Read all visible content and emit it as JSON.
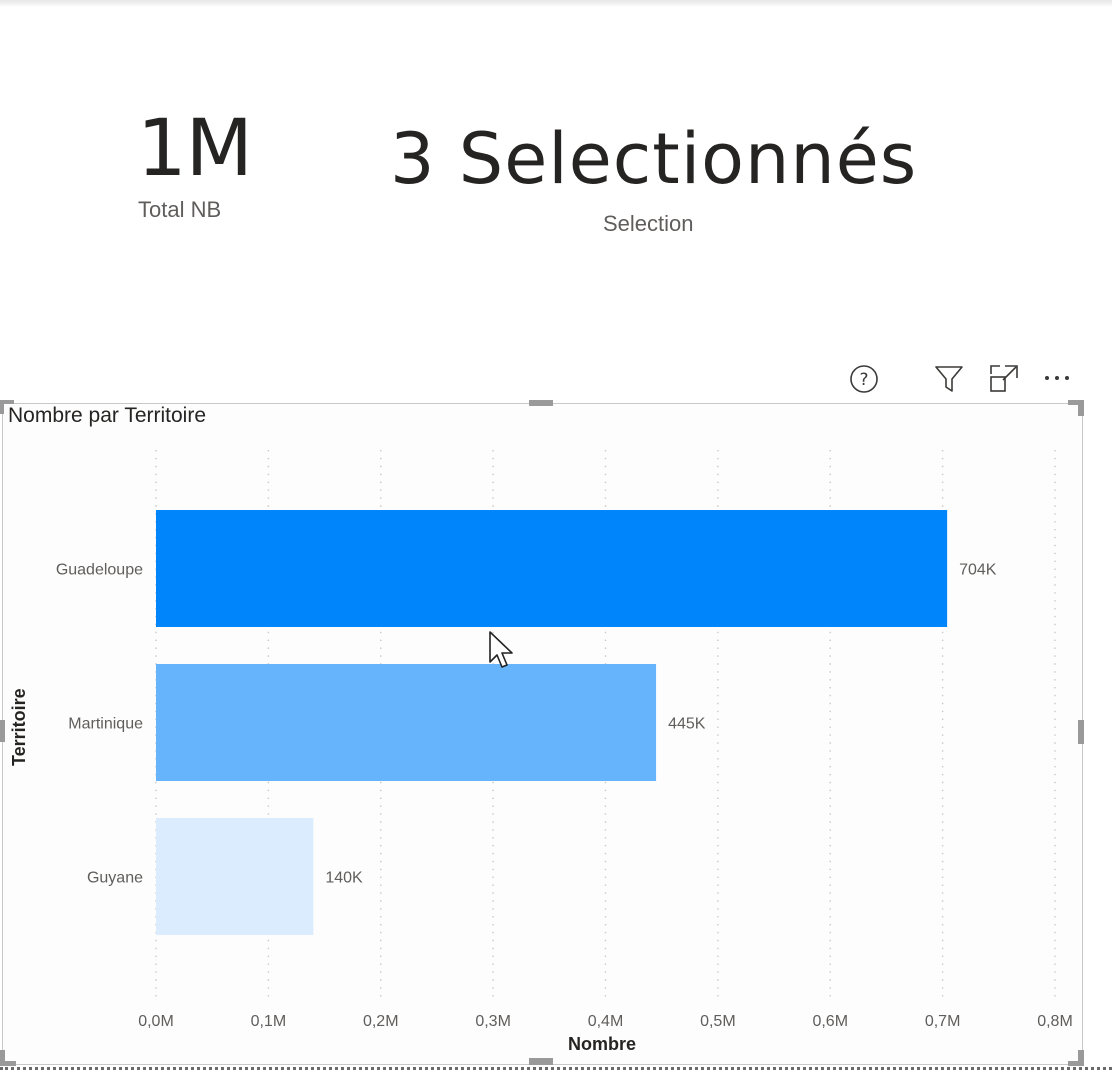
{
  "kpis": {
    "total": {
      "value": "1M",
      "label": "Total NB"
    },
    "selection": {
      "value": "3 Selectionnés",
      "label": "Selection"
    }
  },
  "visual_header": {
    "icons": [
      "help-icon",
      "filter-icon",
      "focus-mode-icon",
      "more-options-icon"
    ]
  },
  "chart_data": {
    "type": "bar",
    "orientation": "horizontal",
    "title": "Nombre par Territoire",
    "xlabel": "Nombre",
    "ylabel": "Territoire",
    "categories": [
      "Guadeloupe",
      "Martinique",
      "Guyane"
    ],
    "values": [
      704000,
      445000,
      140000
    ],
    "data_labels": [
      "704K",
      "445K",
      "140K"
    ],
    "xlim": [
      0,
      800000
    ],
    "xticks": [
      0,
      100000,
      200000,
      300000,
      400000,
      500000,
      600000,
      700000,
      800000
    ],
    "xtick_labels": [
      "0,0M",
      "0,1M",
      "0,2M",
      "0,3M",
      "0,4M",
      "0,5M",
      "0,6M",
      "0,7M",
      "0,8M"
    ],
    "bar_colors": [
      "#0185fb",
      "#66b5fc",
      "#daecfd"
    ],
    "grid": "vertical-dotted"
  }
}
